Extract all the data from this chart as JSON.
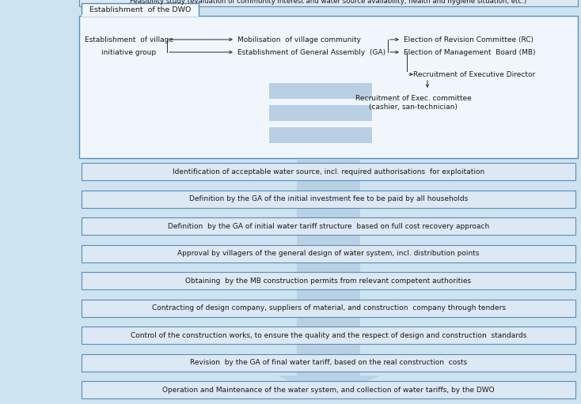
{
  "bg_color": "#cde3f0",
  "box_fill": "#dce8f3",
  "box_edge": "#5b8db8",
  "dwo_fill": "#f0f6fc",
  "dwo_edge": "#5b8db8",
  "tab_fill": "#f0f6fc",
  "blue_rect_fill": "#b8cfe4",
  "arrow_fill": "#9ab7d3",
  "top_bar_text": "Feasibility study (evaluation of community interest and water source availability, health and hygiene situation, etc.)",
  "dwo_title": "Establishment  of the DWO",
  "village_group_text": "Establishment  of village\ninitiative group",
  "mob_text": "Mobilisation  of village community",
  "ga_text": "Establishment of General Assembly  (GA)",
  "rc_text": "Election of Revision Committee (RC)",
  "mb_text": "Election of Management  Board (MB)",
  "exec_dir_text": "Recruitment of Executive Director",
  "exec_comm_text": "Recruitment of Exec. committee\n(cashier, san-technician)",
  "steps": [
    "Identification of acceptable water source, incl. required authorisations  for exploitation",
    "Definition by the GA of the initial investment fee to be paid by all households",
    "Definition  by the GA of initial water tariff structure  based on full cost recovery approach",
    "Approval by villagers of the general design of water system, incl. distribution points",
    "Obtaining  by the MB construction permits from relevant competent authorities",
    "Contracting of design company, suppliers of material, and construction  company through tenders",
    "Control of the construction works, to ensure the quality and the respect of design and construction  standards",
    "Revision  by the GA of final water tariff, based on the real construction  costs",
    "Operation and Maintenance of the water system, and collection of water tariffs, by the DWO"
  ],
  "font_size": 6.5,
  "small_font": 6.2,
  "tab_font": 6.8
}
